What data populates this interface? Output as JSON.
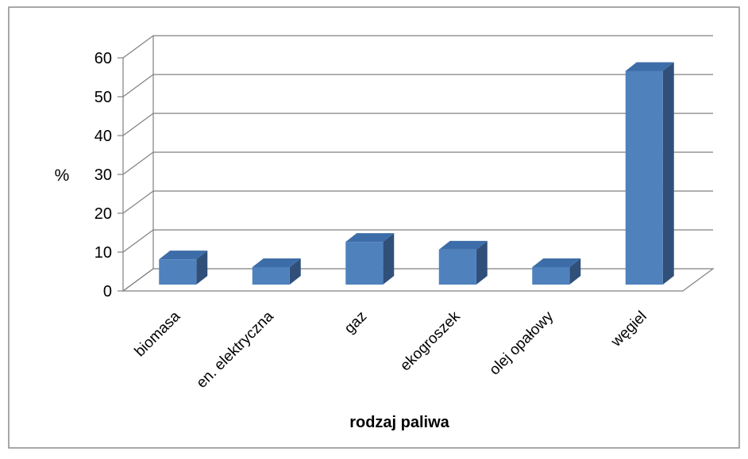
{
  "chart_data": {
    "type": "bar",
    "style": "3d-column",
    "categories": [
      "biomasa",
      "en. elektryczna",
      "gaz",
      "ekogroszek",
      "olej opałowy",
      "węgiel"
    ],
    "values": [
      6.5,
      4.5,
      11,
      9,
      4.5,
      55
    ],
    "xlabel": "rodzaj paliwa",
    "ylabel": "%",
    "ylim": [
      0,
      60
    ],
    "yticks": [
      0,
      10,
      20,
      30,
      40,
      50,
      60
    ],
    "grid": true,
    "legend": "none",
    "colors": {
      "bar_front": "#4F81BD",
      "bar_side": "#30507A",
      "bar_top": "#3D6DA8",
      "grid": "#808080",
      "frame": "#808080"
    }
  }
}
